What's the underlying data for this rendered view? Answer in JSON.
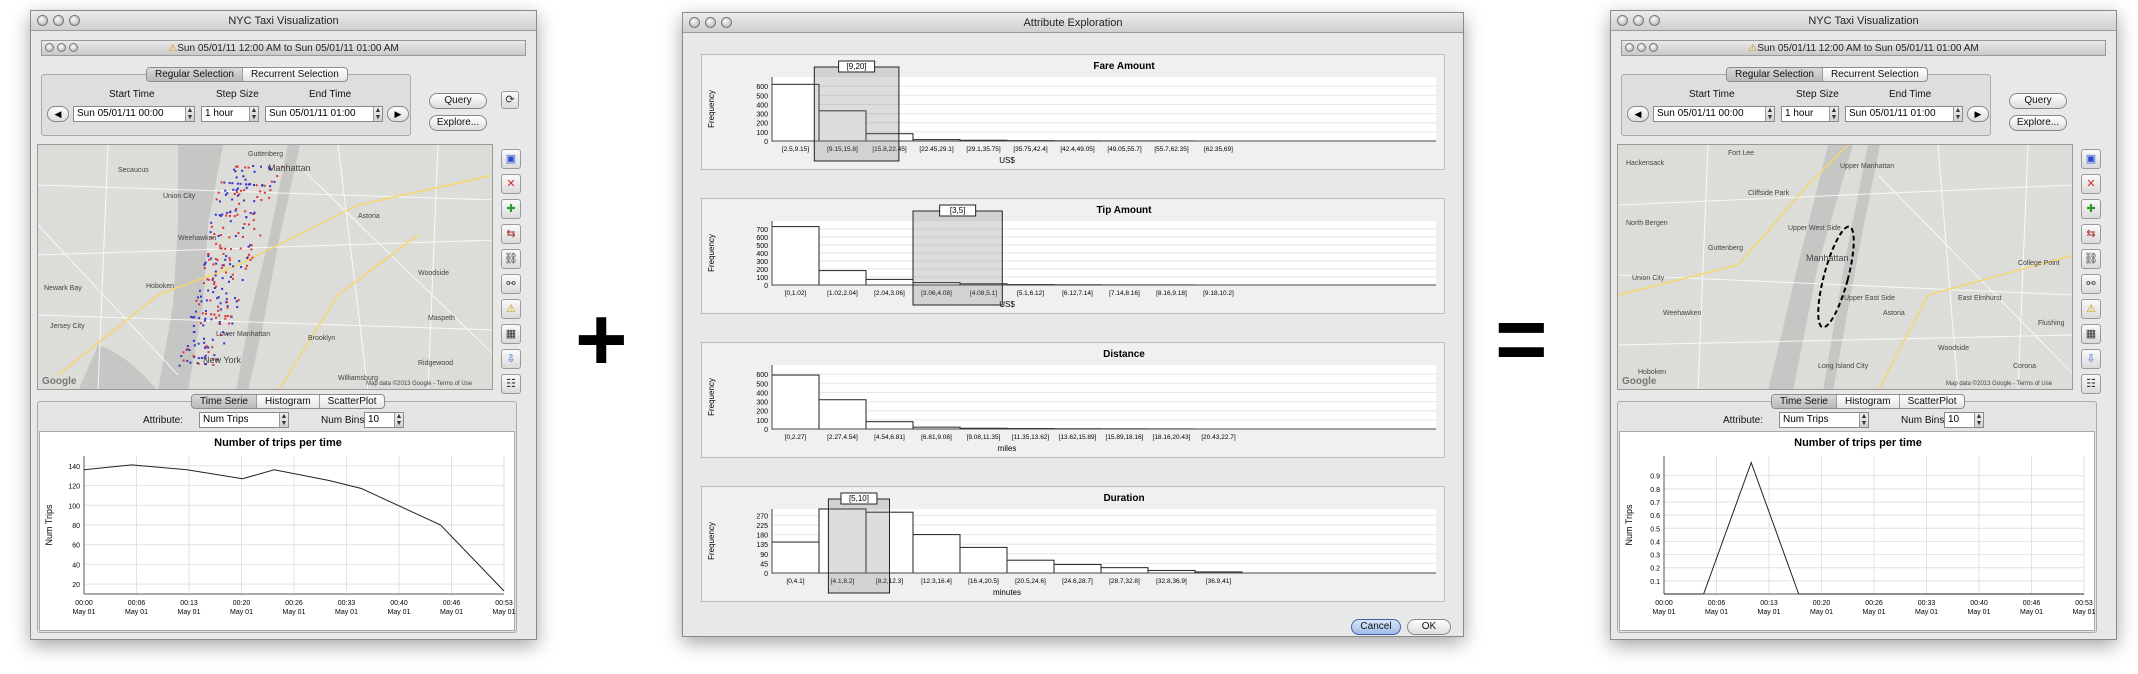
{
  "ops": {
    "plus": "+",
    "equals": "="
  },
  "left": {
    "title": "NYC Taxi Visualization",
    "subtitle": "Sun 05/01/11 12:00 AM to Sun 05/01/11 01:00 AM",
    "tabs": [
      "Regular Selection",
      "Recurrent Selection"
    ],
    "start_label": "Start Time",
    "step_label": "Step Size",
    "end_label": "End Time",
    "start_value": "Sun 05/01/11 00:00",
    "step_value": "1 hour",
    "end_value": "Sun 05/01/11 01:00",
    "query": "Query",
    "explore": "Explore...",
    "map_labels": [
      "Union City",
      "Secaucus",
      "Manhattan",
      "Hoboken",
      "Jersey City",
      "New York",
      "Lower Manhattan",
      "Brooklyn",
      "Williamsburg",
      "Ridgewood",
      "Astoria",
      "Woodside",
      "Maspeth",
      "Guttenberg",
      "Weehawken",
      "Newark Bay"
    ],
    "google": "Google",
    "map_credit": "Map data ©2013 Google - Terms of Use",
    "plot_tabs": [
      "Time Serie",
      "Histogram",
      "ScatterPlot"
    ],
    "attr_label": "Attribute:",
    "attr_value": "Num Trips",
    "bins_label": "Num Bins:",
    "bins_value": "10"
  },
  "right": {
    "title": "NYC Taxi Visualization",
    "subtitle": "Sun 05/01/11 12:00 AM to Sun 05/01/11 01:00 AM",
    "tabs": [
      "Regular Selection",
      "Recurrent Selection"
    ],
    "start_label": "Start Time",
    "step_label": "Step Size",
    "end_label": "End Time",
    "start_value": "Sun 05/01/11 00:00",
    "step_value": "1 hour",
    "end_value": "Sun 05/01/11 01:00",
    "query": "Query",
    "explore": "Explore...",
    "map_labels": [
      "Upper Manhattan",
      "Manhattan",
      "Upper East Side",
      "Upper West Side",
      "North Bergen",
      "Union City",
      "Guttenberg",
      "Weehawken",
      "Hoboken",
      "Astoria",
      "Long Island City",
      "Woodside",
      "Flushing",
      "Corona",
      "College Point",
      "East Elmhurst",
      "Fort Lee",
      "Cliffside Park",
      "Hackensack"
    ],
    "google": "Google",
    "map_credit": "Map data ©2013 Google - Terms of Use",
    "plot_tabs": [
      "Time Serie",
      "Histogram",
      "ScatterPlot"
    ],
    "attr_label": "Attribute:",
    "attr_value": "Num Trips",
    "bins_label": "Num Bins:",
    "bins_value": "10"
  },
  "middle": {
    "title": "Attribute Exploration",
    "cancel": "Cancel",
    "ok": "OK"
  },
  "chart_data": [
    {
      "id": "left_ts",
      "type": "line",
      "title": "Number of trips per time",
      "ylabel": "Num Trips",
      "x": [
        "00:00\nMay 01",
        "00:06\nMay 01",
        "00:13\nMay 01",
        "00:20\nMay 01",
        "00:26\nMay 01",
        "00:33\nMay 01",
        "00:40\nMay 01",
        "00:46\nMay 01",
        "00:53\nMay 01"
      ],
      "points": [
        [
          0,
          136
        ],
        [
          6,
          141
        ],
        [
          13,
          136
        ],
        [
          20,
          127
        ],
        [
          24,
          136
        ],
        [
          31,
          125
        ],
        [
          35,
          117
        ],
        [
          45,
          80
        ],
        [
          53,
          13
        ]
      ],
      "xlim": [
        0,
        53
      ],
      "ylim": [
        10,
        150
      ],
      "yticks": [
        20,
        40,
        60,
        80,
        100,
        120,
        140
      ]
    },
    {
      "id": "right_ts",
      "type": "line",
      "title": "Number of trips per time",
      "ylabel": "Num Trips",
      "x": [
        "00:00\nMay 01",
        "00:06\nMay 01",
        "00:13\nMay 01",
        "00:20\nMay 01",
        "00:26\nMay 01",
        "00:33\nMay 01",
        "00:40\nMay 01",
        "00:46\nMay 01",
        "00:53\nMay 01"
      ],
      "points": [
        [
          0,
          0
        ],
        [
          5,
          0
        ],
        [
          11,
          1
        ],
        [
          17,
          0
        ],
        [
          53,
          0
        ]
      ],
      "xlim": [
        0,
        53
      ],
      "ylim": [
        0,
        1.05
      ],
      "yticks": [
        0.1,
        0.2,
        0.3,
        0.4,
        0.5,
        0.6,
        0.7,
        0.8,
        0.9
      ]
    },
    {
      "id": "fare",
      "type": "bar",
      "title": "Fare Amount",
      "xlabel": "US$",
      "ylabel": "Frequency",
      "categories": [
        "[2.5,9.15]",
        "[9.15,15.8]",
        "[15.8,22.45]",
        "[22.45,29.1]",
        "[29.1,35.75]",
        "[35.75,42.4]",
        "[42.4,49.05]",
        "[49.05,55.7]",
        "[55.7,62.35]",
        "[62.35,69]"
      ],
      "values": [
        620,
        330,
        80,
        15,
        8,
        4,
        2,
        1,
        1,
        0
      ],
      "ylim": [
        0,
        700
      ],
      "yticks": [
        0,
        100,
        200,
        300,
        400,
        500,
        600
      ],
      "selection": "[9,20]",
      "sel_range": [
        0.9,
        2.7
      ]
    },
    {
      "id": "tip",
      "type": "bar",
      "title": "Tip Amount",
      "xlabel": "US$",
      "ylabel": "Frequency",
      "categories": [
        "[0,1.02]",
        "[1.02,2.04]",
        "[2.04,3.06]",
        "[3.06,4.08]",
        "[4.08,5.1]",
        "[5.1,6.12]",
        "[6.12,7.14]",
        "[7.14,8.16]",
        "[8.16,9.18]",
        "[9.18,10.2]"
      ],
      "values": [
        730,
        180,
        70,
        30,
        15,
        5,
        3,
        1,
        1,
        0
      ],
      "ylim": [
        0,
        800
      ],
      "yticks": [
        0,
        100,
        200,
        300,
        400,
        500,
        600,
        700
      ],
      "selection": "[3,5]",
      "sel_range": [
        3.0,
        4.9
      ]
    },
    {
      "id": "distance",
      "type": "bar",
      "title": "Distance",
      "xlabel": "miles",
      "ylabel": "Frequency",
      "categories": [
        "[0,2.27]",
        "[2.27,4.54]",
        "[4.54,6.81]",
        "[6.81,9.08]",
        "[9.08,11.35]",
        "[11.35,13.62]",
        "[13.62,15.89]",
        "[15.89,18.16]",
        "[18.16,20.43]",
        "[20.43,22.7]"
      ],
      "values": [
        590,
        320,
        80,
        20,
        8,
        5,
        3,
        2,
        1,
        0
      ],
      "ylim": [
        0,
        700
      ],
      "yticks": [
        0,
        100,
        200,
        300,
        400,
        500,
        600
      ]
    },
    {
      "id": "duration",
      "type": "bar",
      "title": "Duration",
      "xlabel": "minutes",
      "ylabel": "Frequency",
      "categories": [
        "[0,4.1]",
        "[4.1,8.2]",
        "[8.2,12.3]",
        "[12.3,16.4]",
        "[16.4,20.5]",
        "[20.5,24.6]",
        "[24.6,28.7]",
        "[28.7,32.8]",
        "[32.8,36.9]",
        "[36.9,41]"
      ],
      "values": [
        145,
        300,
        285,
        180,
        120,
        60,
        40,
        25,
        12,
        5
      ],
      "ylim": [
        0,
        300
      ],
      "yticks": [
        0,
        45,
        90,
        135,
        180,
        225,
        270
      ],
      "selection": "[5,10]",
      "sel_range": [
        1.2,
        2.5
      ]
    }
  ]
}
